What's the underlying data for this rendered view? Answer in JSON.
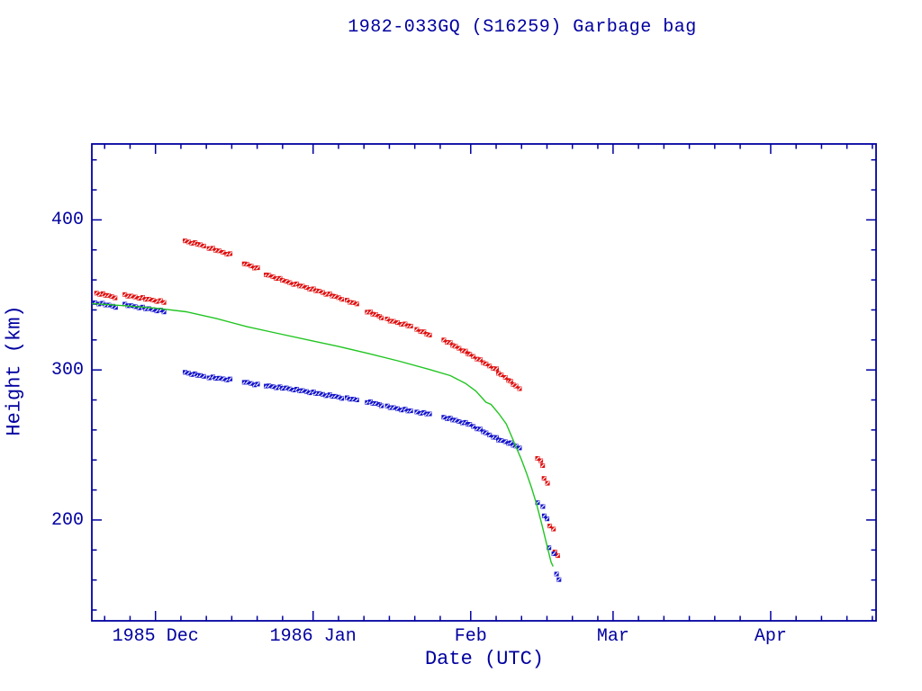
{
  "title": "1982-033GQ (S16259) Garbage bag",
  "colors": {
    "text": "#0000A0",
    "frame": "#0000A0",
    "apogee": "#E01010",
    "perigee": "#1414CC",
    "model": "#22C522",
    "background": "#FFFFFF",
    "marker_slash": "#FFFFFF"
  },
  "chart_data": {
    "type": "scatter",
    "title": "1982-033GQ (S16259) Garbage bag",
    "xlabel": "Date (UTC)",
    "ylabel": "Height (km)",
    "grid": false,
    "legend": "none",
    "x_axis": {
      "note": "day 0 = 1985 Dec 1",
      "range_days": [
        -12.52,
        141.73
      ],
      "major_ticks": [
        {
          "label": "1985 Dec",
          "day": 0
        },
        {
          "label": "1986 Jan",
          "day": 31
        },
        {
          "label": "Feb",
          "day": 62
        },
        {
          "label": "Mar",
          "day": 90
        },
        {
          "label": "Apr",
          "day": 121
        }
      ],
      "minor_tick_days": [
        -10,
        -5,
        5,
        10,
        15,
        20,
        25,
        36,
        41,
        46,
        51,
        56,
        67,
        72,
        77,
        82,
        87,
        95,
        100,
        105,
        110,
        115,
        126,
        131,
        136,
        141
      ]
    },
    "y_axis": {
      "range": [
        132.8,
        450.6
      ],
      "major_ticks": [
        200,
        300,
        400
      ],
      "minor_ticks": [
        140,
        160,
        180,
        220,
        240,
        260,
        280,
        320,
        340,
        360,
        380,
        420,
        440
      ]
    },
    "series": [
      {
        "name": "apogee-height",
        "style": "marker",
        "marker": "square-slash",
        "color_key": "apogee",
        "points": [
          [
            -11.6,
            351.2
          ],
          [
            -11.0,
            350.8
          ],
          [
            -10.4,
            350.4
          ],
          [
            -9.8,
            349.9
          ],
          [
            -9.2,
            349.4
          ],
          [
            -8.6,
            348.9
          ],
          [
            -8.0,
            348.5
          ],
          [
            -6.1,
            349.8
          ],
          [
            -5.4,
            349.4
          ],
          [
            -4.7,
            349.0
          ],
          [
            -4.0,
            348.6
          ],
          [
            -3.3,
            348.2
          ],
          [
            -2.6,
            347.8
          ],
          [
            -1.9,
            347.3
          ],
          [
            -1.2,
            346.9
          ],
          [
            -0.5,
            346.5
          ],
          [
            0.2,
            346.1
          ],
          [
            0.9,
            345.7
          ],
          [
            1.7,
            345.2
          ],
          [
            5.9,
            385.8
          ],
          [
            6.5,
            385.3
          ],
          [
            7.1,
            384.9
          ],
          [
            7.7,
            384.4
          ],
          [
            8.3,
            383.9
          ],
          [
            8.9,
            383.2
          ],
          [
            9.5,
            382.6
          ],
          [
            10.5,
            381.4
          ],
          [
            11.2,
            380.6
          ],
          [
            11.9,
            379.9
          ],
          [
            12.6,
            379.1
          ],
          [
            13.3,
            378.4
          ],
          [
            14.0,
            377.6
          ],
          [
            14.6,
            377.0
          ],
          [
            17.5,
            371.0
          ],
          [
            18.1,
            370.2
          ],
          [
            18.8,
            369.3
          ],
          [
            19.4,
            368.4
          ],
          [
            20.0,
            367.6
          ],
          [
            21.8,
            363.6
          ],
          [
            22.4,
            362.9
          ],
          [
            23.1,
            362.1
          ],
          [
            23.7,
            361.4
          ],
          [
            24.4,
            360.6
          ],
          [
            25.0,
            360.0
          ],
          [
            25.8,
            358.8
          ],
          [
            26.4,
            358.2
          ],
          [
            27.1,
            357.5
          ],
          [
            27.7,
            356.9
          ],
          [
            28.4,
            356.2
          ],
          [
            29.0,
            355.6
          ],
          [
            29.7,
            354.9
          ],
          [
            30.3,
            354.3
          ],
          [
            31.0,
            353.6
          ],
          [
            31.6,
            353.0
          ],
          [
            32.3,
            352.3
          ],
          [
            32.9,
            351.6
          ],
          [
            33.5,
            350.9
          ],
          [
            34.2,
            350.2
          ],
          [
            34.8,
            349.5
          ],
          [
            35.4,
            348.8
          ],
          [
            36.0,
            348.2
          ],
          [
            36.6,
            347.5
          ],
          [
            37.6,
            346.0
          ],
          [
            38.3,
            345.3
          ],
          [
            39.0,
            344.6
          ],
          [
            39.6,
            344.0
          ],
          [
            41.6,
            339.0
          ],
          [
            42.2,
            338.2
          ],
          [
            42.8,
            337.4
          ],
          [
            43.4,
            336.6
          ],
          [
            44.0,
            335.8
          ],
          [
            44.4,
            335.2
          ],
          [
            45.5,
            333.5
          ],
          [
            46.2,
            332.8
          ],
          [
            46.9,
            332.2
          ],
          [
            47.6,
            331.5
          ],
          [
            48.3,
            330.9
          ],
          [
            49.0,
            330.2
          ],
          [
            49.7,
            329.6
          ],
          [
            50.3,
            329.0
          ],
          [
            51.4,
            327.0
          ],
          [
            52.1,
            326.0
          ],
          [
            52.7,
            325.0
          ],
          [
            53.4,
            324.0
          ],
          [
            54.0,
            323.0
          ],
          [
            56.7,
            320.0
          ],
          [
            57.3,
            318.9
          ],
          [
            57.9,
            317.8
          ],
          [
            58.5,
            316.6
          ],
          [
            59.1,
            315.5
          ],
          [
            59.7,
            314.4
          ],
          [
            60.3,
            313.3
          ],
          [
            60.9,
            312.1
          ],
          [
            61.5,
            311.0
          ],
          [
            61.9,
            310.2
          ],
          [
            62.5,
            309.0
          ],
          [
            63.2,
            307.7
          ],
          [
            63.8,
            306.4
          ],
          [
            64.5,
            305.1
          ],
          [
            65.1,
            303.8
          ],
          [
            65.7,
            302.6
          ],
          [
            66.4,
            301.4
          ],
          [
            67.0,
            300.3
          ],
          [
            67.5,
            298.0
          ],
          [
            68.1,
            296.5
          ],
          [
            68.8,
            295.0
          ],
          [
            69.4,
            293.5
          ],
          [
            69.8,
            292.0
          ],
          [
            70.4,
            290.5
          ],
          [
            71.0,
            289.0
          ],
          [
            71.6,
            287.5
          ],
          [
            75.1,
            241.5
          ],
          [
            75.7,
            239.0
          ],
          [
            76.2,
            236.5
          ],
          [
            76.5,
            227.5
          ],
          [
            77.1,
            224.5
          ],
          [
            77.5,
            196.5
          ],
          [
            78.2,
            193.5
          ],
          [
            78.6,
            179.0
          ],
          [
            79.2,
            176.0
          ]
        ]
      },
      {
        "name": "perigee-height",
        "style": "marker",
        "marker": "square-slash",
        "color_key": "perigee",
        "points": [
          [
            -11.9,
            344.8
          ],
          [
            -11.2,
            344.4
          ],
          [
            -10.5,
            344.0
          ],
          [
            -9.8,
            343.5
          ],
          [
            -9.1,
            343.0
          ],
          [
            -8.4,
            342.5
          ],
          [
            -7.9,
            342.1
          ],
          [
            -6.1,
            343.4
          ],
          [
            -5.4,
            343.0
          ],
          [
            -4.7,
            342.6
          ],
          [
            -4.0,
            342.2
          ],
          [
            -3.3,
            341.8
          ],
          [
            -2.6,
            341.4
          ],
          [
            -1.9,
            341.0
          ],
          [
            -1.2,
            340.6
          ],
          [
            -0.5,
            340.2
          ],
          [
            0.2,
            339.8
          ],
          [
            0.9,
            339.4
          ],
          [
            1.7,
            338.9
          ],
          [
            5.9,
            298.2
          ],
          [
            6.5,
            297.8
          ],
          [
            7.1,
            297.4
          ],
          [
            7.7,
            297.0
          ],
          [
            8.3,
            296.6
          ],
          [
            8.9,
            296.1
          ],
          [
            9.5,
            295.7
          ],
          [
            10.5,
            295.2
          ],
          [
            11.2,
            294.9
          ],
          [
            11.9,
            294.6
          ],
          [
            12.6,
            294.3
          ],
          [
            13.3,
            294.1
          ],
          [
            14.0,
            293.8
          ],
          [
            14.6,
            293.5
          ],
          [
            17.5,
            292.0
          ],
          [
            18.1,
            291.5
          ],
          [
            18.8,
            291.0
          ],
          [
            19.4,
            290.5
          ],
          [
            20.0,
            290.1
          ],
          [
            21.8,
            289.5
          ],
          [
            22.4,
            289.2
          ],
          [
            23.1,
            288.9
          ],
          [
            23.7,
            288.6
          ],
          [
            24.4,
            288.3
          ],
          [
            25.0,
            288.0
          ],
          [
            25.8,
            287.8
          ],
          [
            26.4,
            287.4
          ],
          [
            27.1,
            287.1
          ],
          [
            27.7,
            286.7
          ],
          [
            28.4,
            286.3
          ],
          [
            29.0,
            286.0
          ],
          [
            29.7,
            285.6
          ],
          [
            30.3,
            285.2
          ],
          [
            31.0,
            284.9
          ],
          [
            31.6,
            284.5
          ],
          [
            32.3,
            284.1
          ],
          [
            32.9,
            283.7
          ],
          [
            33.5,
            283.3
          ],
          [
            34.2,
            283.0
          ],
          [
            34.8,
            282.6
          ],
          [
            35.4,
            282.2
          ],
          [
            36.0,
            281.9
          ],
          [
            36.6,
            281.5
          ],
          [
            37.6,
            281.0
          ],
          [
            38.3,
            280.7
          ],
          [
            39.0,
            280.3
          ],
          [
            39.6,
            280.0
          ],
          [
            41.6,
            278.8
          ],
          [
            42.2,
            278.3
          ],
          [
            42.8,
            277.9
          ],
          [
            43.4,
            277.4
          ],
          [
            44.0,
            277.0
          ],
          [
            44.4,
            276.6
          ],
          [
            45.5,
            275.5
          ],
          [
            46.2,
            275.1
          ],
          [
            46.9,
            274.7
          ],
          [
            47.6,
            274.2
          ],
          [
            48.3,
            273.8
          ],
          [
            49.0,
            273.4
          ],
          [
            49.7,
            272.9
          ],
          [
            50.3,
            272.5
          ],
          [
            51.4,
            272.0
          ],
          [
            52.1,
            271.6
          ],
          [
            52.7,
            271.2
          ],
          [
            53.4,
            270.9
          ],
          [
            54.0,
            270.5
          ],
          [
            56.7,
            268.5
          ],
          [
            57.3,
            268.0
          ],
          [
            57.9,
            267.4
          ],
          [
            58.5,
            266.9
          ],
          [
            59.1,
            266.3
          ],
          [
            59.7,
            265.7
          ],
          [
            60.3,
            265.2
          ],
          [
            60.9,
            264.6
          ],
          [
            61.5,
            264.0
          ],
          [
            61.9,
            263.5
          ],
          [
            62.5,
            262.4
          ],
          [
            63.2,
            261.2
          ],
          [
            63.8,
            260.1
          ],
          [
            64.5,
            259.0
          ],
          [
            65.1,
            257.8
          ],
          [
            65.7,
            256.7
          ],
          [
            66.4,
            255.6
          ],
          [
            67.0,
            254.5
          ],
          [
            67.5,
            253.5
          ],
          [
            68.1,
            252.8
          ],
          [
            68.8,
            252.2
          ],
          [
            69.4,
            251.5
          ],
          [
            69.8,
            251.0
          ],
          [
            70.4,
            250.0
          ],
          [
            71.0,
            249.0
          ],
          [
            71.6,
            248.0
          ],
          [
            75.1,
            212.0
          ],
          [
            76.1,
            208.5
          ],
          [
            76.5,
            203.0
          ],
          [
            77.1,
            200.5
          ],
          [
            77.4,
            181.5
          ],
          [
            78.3,
            178.0
          ],
          [
            78.8,
            163.5
          ],
          [
            79.4,
            160.5
          ]
        ]
      },
      {
        "name": "decay-model-curve",
        "style": "line",
        "color_key": "model",
        "points": [
          [
            -12.5,
            344.2
          ],
          [
            -6.0,
            342.8
          ],
          [
            0.0,
            341.2
          ],
          [
            6.0,
            338.8
          ],
          [
            12.0,
            334.2
          ],
          [
            18.0,
            328.8
          ],
          [
            24.0,
            324.4
          ],
          [
            30.0,
            320.0
          ],
          [
            36.0,
            315.6
          ],
          [
            42.0,
            310.8
          ],
          [
            48.0,
            305.8
          ],
          [
            54.0,
            300.2
          ],
          [
            58.0,
            296.2
          ],
          [
            61.0,
            291.0
          ],
          [
            63.0,
            286.0
          ],
          [
            65.0,
            278.5
          ],
          [
            66.0,
            277.0
          ],
          [
            67.5,
            271.0
          ],
          [
            69.0,
            264.0
          ],
          [
            70.0,
            256.0
          ],
          [
            71.0,
            248.0
          ],
          [
            72.0,
            240.0
          ],
          [
            73.0,
            231.0
          ],
          [
            74.0,
            221.0
          ],
          [
            75.0,
            210.0
          ],
          [
            76.0,
            197.0
          ],
          [
            77.0,
            183.0
          ],
          [
            77.8,
            172.0
          ],
          [
            78.2,
            169.0
          ]
        ]
      }
    ]
  }
}
